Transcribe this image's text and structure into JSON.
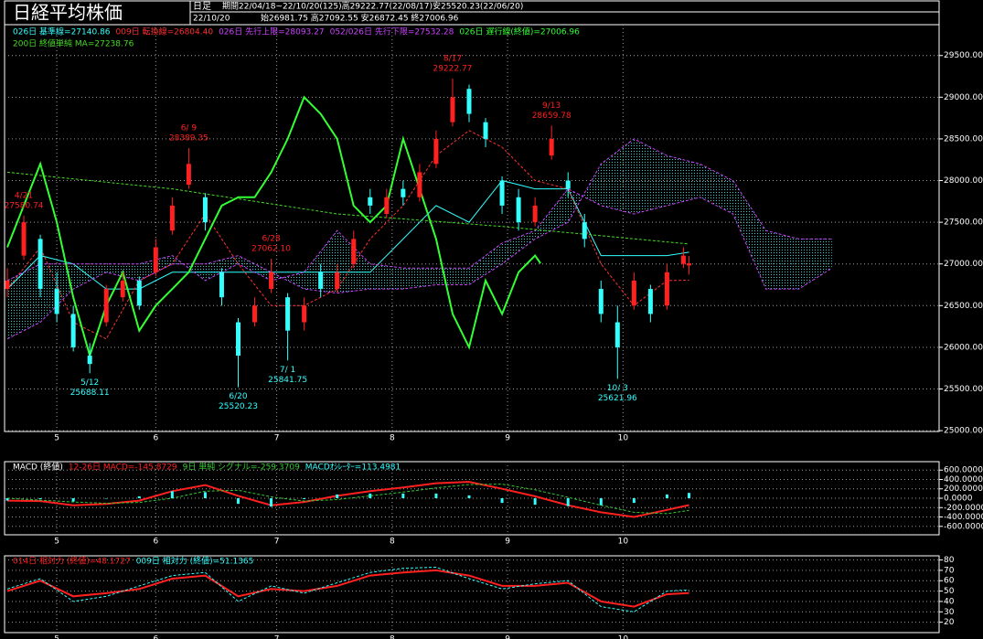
{
  "header": {
    "title": "日経平均株価",
    "period_label": "日足",
    "period": "期間22/04/18~22/10/20(125)高29222.77(22/08/17)安25520.23(22/06/20)",
    "date": "22/10/20",
    "ohlc": "始26981.75 高27092.55 安26872.45 終27006.96"
  },
  "chart_data": [
    {
      "type": "candlestick",
      "up_color": "#ff2020",
      "down_color": "#33ffff",
      "grid": true,
      "xlim": [
        -0.5,
        169.5
      ],
      "xticks": [
        {
          "value": 9,
          "label": "5"
        },
        {
          "value": 27,
          "label": "6"
        },
        {
          "value": 49,
          "label": "7"
        },
        {
          "value": 70,
          "label": "8"
        },
        {
          "value": 91,
          "label": "9"
        },
        {
          "value": 112,
          "label": "10"
        }
      ],
      "ylim": [
        24990,
        29870
      ],
      "yticks": [
        {
          "value": 25000,
          "label": "25000.00"
        },
        {
          "value": 25500,
          "label": "25500.00"
        },
        {
          "value": 26000,
          "label": "26000.00"
        },
        {
          "value": 26500,
          "label": "26500.00"
        },
        {
          "value": 27000,
          "label": "27000.00"
        },
        {
          "value": 27500,
          "label": "27500.00"
        },
        {
          "value": 28000,
          "label": "28000.00"
        },
        {
          "value": 28500,
          "label": "28500.00"
        },
        {
          "value": 29000,
          "label": "29000.00"
        },
        {
          "value": 29500,
          "label": "29500.00"
        }
      ],
      "x": [
        0,
        3,
        6,
        9,
        12,
        15,
        18,
        21,
        24,
        27,
        30,
        33,
        36,
        39,
        42,
        45,
        48,
        51,
        54,
        57,
        60,
        63,
        66,
        69,
        72,
        75,
        78,
        81,
        84,
        87,
        90,
        93,
        96,
        99,
        102,
        105,
        108,
        111,
        114,
        117,
        120,
        123,
        124
      ],
      "open": [
        26700,
        27100,
        27300,
        26700,
        26400,
        25900,
        26300,
        26600,
        26800,
        26900,
        27400,
        27950,
        27800,
        26900,
        26300,
        26300,
        26700,
        26600,
        26300,
        26900,
        26700,
        27000,
        27800,
        27600,
        27900,
        27800,
        28200,
        28700,
        29100,
        28700,
        28000,
        27800,
        27500,
        28300,
        28000,
        27500,
        26700,
        26300,
        26500,
        26700,
        26500,
        27000,
        26981.75
      ],
      "high": [
        26950,
        27580.74,
        27350,
        26900,
        26500,
        26050,
        26750,
        26900,
        26850,
        27300,
        27800,
        28389.35,
        27850,
        26950,
        26350,
        26600,
        27062.1,
        26650,
        26600,
        27000,
        27000,
        27400,
        27900,
        27900,
        28000,
        28200,
        28600,
        29222.77,
        29150,
        28750,
        28050,
        27900,
        27800,
        28659.78,
        28100,
        27600,
        26800,
        26500,
        26900,
        26750,
        27000,
        27200,
        27092.55
      ],
      "low": [
        26600,
        27050,
        26600,
        26300,
        25950,
        25688.11,
        26250,
        26550,
        26450,
        26850,
        27350,
        27900,
        27400,
        26500,
        25520.23,
        26250,
        26650,
        25841.75,
        26200,
        26600,
        26650,
        26950,
        27600,
        27550,
        27700,
        27750,
        28150,
        28650,
        28700,
        28400,
        27600,
        27400,
        27450,
        28250,
        27800,
        27200,
        26300,
        25621.96,
        26450,
        26300,
        26450,
        26950,
        26872.45
      ],
      "close": [
        26800,
        27500,
        26700,
        26400,
        26000,
        25800,
        26700,
        26800,
        26500,
        27200,
        27700,
        28200,
        27500,
        26600,
        25900,
        26500,
        26900,
        26200,
        26500,
        26700,
        26900,
        27300,
        27700,
        27800,
        27800,
        28100,
        28500,
        29000,
        28800,
        28500,
        27700,
        27500,
        27700,
        28500,
        27900,
        27300,
        26400,
        26000,
        26800,
        26400,
        26900,
        27100,
        27006.96
      ],
      "series": [
        {
          "name": "026日 基準線=27140.86",
          "color": "#33ffff",
          "x": [
            0,
            6,
            12,
            18,
            24,
            30,
            36,
            42,
            48,
            54,
            60,
            66,
            72,
            78,
            84,
            90,
            96,
            102,
            108,
            114,
            120,
            124
          ],
          "values": [
            26700,
            27100,
            27000,
            26700,
            26700,
            26900,
            26900,
            26900,
            26900,
            26900,
            26900,
            26900,
            27300,
            27700,
            27500,
            28000,
            27900,
            27900,
            27100,
            27100,
            27100,
            27140.86
          ]
        },
        {
          "name": "009日 転換線=26804.40",
          "color": "#ff3030",
          "dash": true,
          "x": [
            0,
            6,
            12,
            18,
            24,
            30,
            36,
            42,
            48,
            54,
            60,
            66,
            72,
            78,
            84,
            90,
            96,
            102,
            108,
            114,
            120,
            124
          ],
          "values": [
            26700,
            27200,
            26300,
            26100,
            26800,
            27000,
            27600,
            27000,
            26500,
            26500,
            26700,
            27300,
            27700,
            28300,
            28600,
            28400,
            28000,
            27900,
            27000,
            26500,
            26800,
            26804.4
          ]
        },
        {
          "name": "026日 先行上限=28093.27",
          "color": "#cc44ff",
          "dash": true,
          "cloud": true,
          "x": [
            0,
            6,
            12,
            18,
            24,
            30,
            36,
            42,
            48,
            54,
            60,
            66,
            72,
            78,
            84,
            90,
            96,
            102,
            108,
            114,
            120,
            126,
            132,
            138,
            144,
            150
          ],
          "values": [
            26100,
            26300,
            26700,
            26900,
            26800,
            27000,
            27000,
            27100,
            26900,
            26700,
            26650,
            26700,
            26700,
            26750,
            26750,
            27000,
            27300,
            27500,
            28200,
            28500,
            28300,
            28200,
            28000,
            27400,
            27300,
            27300
          ]
        },
        {
          "name": "052/026日 先行下限=27532.28",
          "color": "#cc44ff",
          "dash": true,
          "cloud": true,
          "x": [
            0,
            6,
            12,
            18,
            24,
            30,
            36,
            42,
            48,
            54,
            60,
            66,
            72,
            78,
            84,
            90,
            96,
            102,
            108,
            114,
            120,
            126,
            132,
            138,
            144,
            150
          ],
          "values": [
            26800,
            27000,
            27000,
            27000,
            27000,
            27100,
            26800,
            27000,
            26800,
            26900,
            27400,
            27000,
            26950,
            26950,
            26950,
            27250,
            27400,
            27900,
            27700,
            27600,
            27700,
            27800,
            27600,
            26700,
            26700,
            26950
          ]
        },
        {
          "name": "026日 遅行線(終値)=27006.96",
          "color": "#33ff33",
          "width": 2,
          "x": [
            0,
            3,
            6,
            9,
            12,
            15,
            18,
            21,
            24,
            27,
            30,
            33,
            36,
            39,
            42,
            45,
            48,
            51,
            54,
            57,
            60,
            63,
            66,
            69,
            72,
            75,
            78,
            81,
            84,
            87,
            90,
            93,
            96,
            97
          ],
          "values": [
            27200,
            27700,
            28200,
            27500,
            26600,
            25900,
            26500,
            26900,
            26200,
            26500,
            26700,
            26900,
            27300,
            27700,
            27800,
            27800,
            28100,
            28500,
            29000,
            28800,
            28500,
            27700,
            27500,
            27700,
            28500,
            27900,
            27300,
            26400,
            26000,
            26800,
            26400,
            26900,
            27100,
            27006.96
          ]
        },
        {
          "name": "200日 終値単純 MA=27238.76",
          "color": "#44dd22",
          "dash": true,
          "x": [
            0,
            30,
            60,
            90,
            124
          ],
          "values": [
            28100,
            27900,
            27600,
            27450,
            27238.76
          ]
        }
      ],
      "annotations": [
        {
          "date": "4/21",
          "x": 3,
          "price": 27580.74,
          "kind": "high"
        },
        {
          "date": "5/12",
          "x": 15,
          "price": 25688.11,
          "kind": "low"
        },
        {
          "date": "6/ 9",
          "x": 33,
          "price": 28389.35,
          "kind": "high"
        },
        {
          "date": "6/20",
          "x": 42,
          "price": 25520.23,
          "kind": "low"
        },
        {
          "date": "6/28",
          "x": 48,
          "price": {
            "value": 27062.1,
            "label": "27062.10"
          },
          "kind": "high"
        },
        {
          "date": "7/ 1",
          "x": 51,
          "price": 25841.75,
          "kind": "low"
        },
        {
          "date": "8/17",
          "x": 81,
          "price": 29222.77,
          "kind": "high"
        },
        {
          "date": "9/13",
          "x": 99,
          "price": 28659.78,
          "kind": "high"
        },
        {
          "date": "10/ 3",
          "x": 111,
          "price": 25621.96,
          "kind": "low"
        }
      ]
    },
    {
      "type": "macd",
      "title": "MACD (終値)",
      "grid": true,
      "xlim": [
        -0.5,
        169.5
      ],
      "xticks": [
        {
          "value": 9,
          "label": "5"
        },
        {
          "value": 27,
          "label": "6"
        },
        {
          "value": 49,
          "label": "7"
        },
        {
          "value": 70,
          "label": "8"
        },
        {
          "value": 91,
          "label": "9"
        },
        {
          "value": 112,
          "label": "10"
        }
      ],
      "ylim": [
        -780,
        780
      ],
      "yticks": [
        {
          "value": -600,
          "label": "-600.0000"
        },
        {
          "value": -400,
          "label": "-400.0000"
        },
        {
          "value": -200,
          "label": "-200.0000"
        },
        {
          "value": 0,
          "label": "0.0000"
        },
        {
          "value": 200,
          "label": "200.0000"
        },
        {
          "value": 400,
          "label": "400.0000"
        },
        {
          "value": 600,
          "label": "600.0000"
        }
      ],
      "series": [
        {
          "name": "12-26日 MACD=-145.8729",
          "color": "#ff2020",
          "width": 2,
          "x": [
            0,
            6,
            12,
            18,
            24,
            30,
            36,
            42,
            48,
            54,
            60,
            66,
            72,
            78,
            84,
            90,
            96,
            102,
            108,
            114,
            120,
            124
          ],
          "values": [
            -50,
            -60,
            -150,
            -120,
            -50,
            150,
            280,
            50,
            -150,
            -80,
            50,
            150,
            230,
            320,
            350,
            200,
            40,
            -150,
            -300,
            -400,
            -250,
            -145.8729
          ]
        },
        {
          "name": "9日 単純 シグナル=-259.3709",
          "color": "#33cc33",
          "dash": true,
          "x": [
            0,
            6,
            12,
            18,
            24,
            30,
            36,
            42,
            48,
            54,
            60,
            66,
            72,
            78,
            84,
            90,
            96,
            102,
            108,
            114,
            120,
            124
          ],
          "values": [
            0,
            -40,
            -80,
            -110,
            -90,
            0,
            150,
            170,
            30,
            -60,
            -30,
            50,
            130,
            220,
            290,
            300,
            180,
            20,
            -150,
            -300,
            -330,
            -259.3709
          ]
        },
        {
          "name": "MACDｵｼﾚｰﾀｰ=113.4981",
          "color": "#33ffff",
          "bars": true,
          "x": [
            0,
            6,
            12,
            18,
            24,
            30,
            36,
            42,
            48,
            54,
            60,
            66,
            72,
            78,
            84,
            90,
            96,
            102,
            108,
            114,
            120,
            124
          ],
          "values": [
            -50,
            -20,
            -70,
            -10,
            40,
            150,
            130,
            -120,
            -180,
            -20,
            80,
            100,
            100,
            100,
            60,
            -100,
            -140,
            -170,
            -150,
            -100,
            80,
            113.4981
          ]
        }
      ]
    },
    {
      "type": "line",
      "grid": true,
      "xlim": [
        -0.5,
        169.5
      ],
      "xticks": [
        {
          "value": 9,
          "label": "5"
        },
        {
          "value": 27,
          "label": "6"
        },
        {
          "value": 49,
          "label": "7"
        },
        {
          "value": 70,
          "label": "8"
        },
        {
          "value": 91,
          "label": "9"
        },
        {
          "value": 112,
          "label": "10"
        }
      ],
      "ylim": [
        10,
        84
      ],
      "yticks": [
        20,
        30,
        40,
        50,
        60,
        70,
        80
      ],
      "series": [
        {
          "name": "014日 相対力 (終値)=48.1727",
          "color": "#ff2020",
          "width": 2,
          "x": [
            0,
            6,
            12,
            18,
            24,
            30,
            36,
            42,
            48,
            54,
            60,
            66,
            72,
            78,
            84,
            90,
            96,
            102,
            108,
            114,
            120,
            124
          ],
          "values": [
            50,
            60,
            45,
            48,
            52,
            62,
            65,
            45,
            52,
            50,
            55,
            65,
            68,
            70,
            65,
            55,
            55,
            58,
            40,
            35,
            47,
            48.1727
          ]
        },
        {
          "name": "009日 相対力 (終値)=51.1365",
          "color": "#33ffff",
          "dash": true,
          "x": [
            0,
            6,
            12,
            18,
            24,
            30,
            36,
            42,
            48,
            54,
            60,
            66,
            72,
            78,
            84,
            90,
            96,
            102,
            108,
            114,
            120,
            124
          ],
          "values": [
            52,
            62,
            40,
            45,
            55,
            65,
            68,
            40,
            55,
            48,
            58,
            68,
            72,
            73,
            62,
            52,
            57,
            60,
            35,
            30,
            50,
            51.1365
          ]
        }
      ]
    }
  ]
}
